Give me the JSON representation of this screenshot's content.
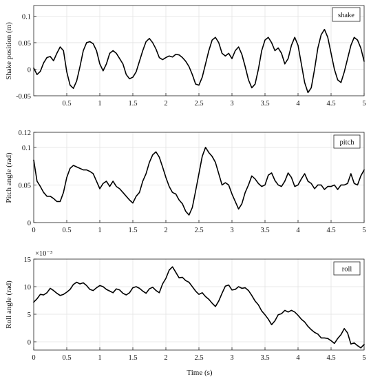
{
  "figure": {
    "xlabel": "Time (s)"
  },
  "chart_data": [
    {
      "type": "line",
      "title": "",
      "xlabel": "",
      "ylabel": "Shake position (m)",
      "xlim": [
        0,
        5
      ],
      "ylim": [
        -0.05,
        0.12
      ],
      "grid": true,
      "legend": {
        "placement": "top-right",
        "entries": [
          "shake"
        ]
      },
      "x_ticks": [
        0.5,
        1,
        1.5,
        2,
        2.5,
        3,
        3.5,
        4,
        4.5,
        5
      ],
      "x_tick_labels": [
        "0.5",
        "1",
        "1.5",
        "2",
        "2.5",
        "3",
        "3.5",
        "4",
        "4.5",
        "5"
      ],
      "y_ticks": [
        -0.05,
        0,
        0.05,
        0.1
      ],
      "y_tick_labels": [
        "-0.05",
        "0",
        "0.05",
        "0.1"
      ],
      "series": [
        {
          "name": "shake",
          "x": [
            0,
            0.05,
            0.1,
            0.15,
            0.2,
            0.25,
            0.3,
            0.35,
            0.4,
            0.45,
            0.5,
            0.55,
            0.6,
            0.65,
            0.7,
            0.75,
            0.8,
            0.85,
            0.9,
            0.95,
            1,
            1.05,
            1.1,
            1.15,
            1.2,
            1.25,
            1.3,
            1.35,
            1.4,
            1.45,
            1.5,
            1.55,
            1.6,
            1.65,
            1.7,
            1.75,
            1.8,
            1.85,
            1.9,
            1.95,
            2,
            2.05,
            2.1,
            2.15,
            2.2,
            2.25,
            2.3,
            2.35,
            2.4,
            2.45,
            2.5,
            2.55,
            2.6,
            2.65,
            2.7,
            2.75,
            2.8,
            2.85,
            2.9,
            2.95,
            3,
            3.05,
            3.1,
            3.15,
            3.2,
            3.25,
            3.3,
            3.35,
            3.4,
            3.45,
            3.5,
            3.55,
            3.6,
            3.65,
            3.7,
            3.75,
            3.8,
            3.85,
            3.9,
            3.95,
            4,
            4.05,
            4.1,
            4.15,
            4.2,
            4.25,
            4.3,
            4.35,
            4.4,
            4.45,
            4.5,
            4.55,
            4.6,
            4.65,
            4.7,
            4.75,
            4.8,
            4.85,
            4.9,
            4.95,
            5
          ],
          "y": [
            0.002,
            -0.01,
            -0.004,
            0.012,
            0.022,
            0.024,
            0.016,
            0.03,
            0.042,
            0.035,
            -0.005,
            -0.03,
            -0.036,
            -0.022,
            0.005,
            0.035,
            0.05,
            0.052,
            0.048,
            0.035,
            0.01,
            -0.003,
            0.01,
            0.03,
            0.035,
            0.03,
            0.02,
            0.01,
            -0.01,
            -0.018,
            -0.015,
            -0.005,
            0.015,
            0.035,
            0.052,
            0.058,
            0.05,
            0.038,
            0.022,
            0.018,
            0.022,
            0.025,
            0.023,
            0.028,
            0.027,
            0.022,
            0.015,
            0.005,
            -0.01,
            -0.028,
            -0.03,
            -0.015,
            0.01,
            0.035,
            0.055,
            0.06,
            0.05,
            0.03,
            0.025,
            0.03,
            0.02,
            0.035,
            0.042,
            0.028,
            0.005,
            -0.02,
            -0.035,
            -0.028,
            0,
            0.035,
            0.055,
            0.06,
            0.05,
            0.035,
            0.04,
            0.03,
            0.01,
            0.02,
            0.045,
            0.06,
            0.045,
            0.01,
            -0.025,
            -0.044,
            -0.035,
            0,
            0.04,
            0.065,
            0.075,
            0.06,
            0.03,
            0,
            -0.02,
            -0.025,
            -0.005,
            0.02,
            0.045,
            0.06,
            0.055,
            0.04,
            0.015
          ]
        }
      ]
    },
    {
      "type": "line",
      "title": "",
      "xlabel": "",
      "ylabel": "Pitch angle (rad)",
      "xlim": [
        0,
        5
      ],
      "ylim": [
        0,
        0.12
      ],
      "grid": true,
      "legend": {
        "placement": "top-right",
        "entries": [
          "pitch"
        ]
      },
      "x_ticks": [
        0,
        0.5,
        1,
        1.5,
        2,
        2.5,
        3,
        3.5,
        4,
        4.5,
        5
      ],
      "x_tick_labels": [
        "0",
        "0.5",
        "1",
        "1.5",
        "2",
        "2.5",
        "3",
        "3.5",
        "4",
        "4.5",
        "5"
      ],
      "y_ticks": [
        0,
        0.05,
        0.1,
        0.12
      ],
      "y_tick_labels": [
        "0",
        "0.05",
        "0.1",
        "0.12"
      ],
      "series": [
        {
          "name": "pitch",
          "x": [
            0,
            0.05,
            0.1,
            0.15,
            0.2,
            0.25,
            0.3,
            0.35,
            0.4,
            0.45,
            0.5,
            0.55,
            0.6,
            0.65,
            0.7,
            0.75,
            0.8,
            0.85,
            0.9,
            0.95,
            1,
            1.05,
            1.1,
            1.15,
            1.2,
            1.25,
            1.3,
            1.35,
            1.4,
            1.45,
            1.5,
            1.55,
            1.6,
            1.65,
            1.7,
            1.75,
            1.8,
            1.85,
            1.9,
            1.95,
            2,
            2.05,
            2.1,
            2.15,
            2.2,
            2.25,
            2.3,
            2.35,
            2.4,
            2.45,
            2.5,
            2.55,
            2.6,
            2.65,
            2.7,
            2.75,
            2.8,
            2.85,
            2.9,
            2.95,
            3,
            3.05,
            3.1,
            3.15,
            3.2,
            3.25,
            3.3,
            3.35,
            3.4,
            3.45,
            3.5,
            3.55,
            3.6,
            3.65,
            3.7,
            3.75,
            3.8,
            3.85,
            3.9,
            3.95,
            4,
            4.05,
            4.1,
            4.15,
            4.2,
            4.25,
            4.3,
            4.35,
            4.4,
            4.45,
            4.5,
            4.55,
            4.6,
            4.65,
            4.7,
            4.75,
            4.8,
            4.85,
            4.9,
            4.95,
            5
          ],
          "y": [
            0.083,
            0.055,
            0.048,
            0.04,
            0.035,
            0.035,
            0.032,
            0.028,
            0.028,
            0.04,
            0.06,
            0.072,
            0.076,
            0.074,
            0.072,
            0.07,
            0.07,
            0.068,
            0.065,
            0.055,
            0.045,
            0.052,
            0.055,
            0.048,
            0.055,
            0.048,
            0.045,
            0.04,
            0.035,
            0.03,
            0.026,
            0.035,
            0.04,
            0.055,
            0.065,
            0.08,
            0.09,
            0.094,
            0.087,
            0.074,
            0.06,
            0.048,
            0.04,
            0.038,
            0.03,
            0.025,
            0.015,
            0.01,
            0.02,
            0.042,
            0.065,
            0.088,
            0.1,
            0.093,
            0.088,
            0.08,
            0.065,
            0.05,
            0.053,
            0.05,
            0.038,
            0.028,
            0.018,
            0.025,
            0.04,
            0.05,
            0.062,
            0.058,
            0.052,
            0.048,
            0.05,
            0.063,
            0.066,
            0.056,
            0.05,
            0.048,
            0.055,
            0.066,
            0.06,
            0.048,
            0.05,
            0.058,
            0.065,
            0.055,
            0.052,
            0.045,
            0.05,
            0.05,
            0.044,
            0.048,
            0.048,
            0.05,
            0.044,
            0.05,
            0.05,
            0.052,
            0.065,
            0.052,
            0.05,
            0.062,
            0.07
          ]
        }
      ]
    },
    {
      "type": "line",
      "title": "",
      "xlabel": "",
      "ylabel": "Roll angle (rad)",
      "y_scale_note": "×10⁻³",
      "xlim": [
        0,
        5
      ],
      "ylim": [
        -1.5,
        15
      ],
      "grid": true,
      "legend": {
        "placement": "top-right",
        "entries": [
          "roll"
        ]
      },
      "x_ticks": [
        0,
        0.5,
        1,
        1.5,
        2,
        2.5,
        3,
        3.5,
        4,
        4.5,
        5
      ],
      "x_tick_labels": [
        "0",
        "0.5",
        "1",
        "1.5",
        "2",
        "2.5",
        "3",
        "3.5",
        "4",
        "4.5",
        "5"
      ],
      "y_ticks": [
        0,
        5,
        10,
        15
      ],
      "y_tick_labels": [
        "0",
        "5",
        "10",
        "15"
      ],
      "series": [
        {
          "name": "roll",
          "x": [
            0,
            0.05,
            0.1,
            0.15,
            0.2,
            0.25,
            0.3,
            0.35,
            0.4,
            0.45,
            0.5,
            0.55,
            0.6,
            0.65,
            0.7,
            0.75,
            0.8,
            0.85,
            0.9,
            0.95,
            1,
            1.05,
            1.1,
            1.15,
            1.2,
            1.25,
            1.3,
            1.35,
            1.4,
            1.45,
            1.5,
            1.55,
            1.6,
            1.65,
            1.7,
            1.75,
            1.8,
            1.85,
            1.9,
            1.95,
            2,
            2.05,
            2.1,
            2.15,
            2.2,
            2.25,
            2.3,
            2.35,
            2.4,
            2.45,
            2.5,
            2.55,
            2.6,
            2.65,
            2.7,
            2.75,
            2.8,
            2.85,
            2.9,
            2.95,
            3,
            3.05,
            3.1,
            3.15,
            3.2,
            3.25,
            3.3,
            3.35,
            3.4,
            3.45,
            3.5,
            3.55,
            3.6,
            3.65,
            3.7,
            3.75,
            3.8,
            3.85,
            3.9,
            3.95,
            4,
            4.05,
            4.1,
            4.15,
            4.2,
            4.25,
            4.3,
            4.35,
            4.4,
            4.45,
            4.5,
            4.55,
            4.6,
            4.65,
            4.7,
            4.75,
            4.8,
            4.85,
            4.9,
            4.95,
            5
          ],
          "y": [
            7.2,
            7.8,
            8.6,
            8.5,
            8.9,
            9.7,
            9.3,
            8.8,
            8.4,
            8.6,
            9.0,
            9.5,
            10.4,
            10.8,
            10.5,
            10.7,
            10.2,
            9.5,
            9.3,
            9.8,
            10.2,
            10.0,
            9.5,
            9.2,
            8.9,
            9.6,
            9.4,
            8.8,
            8.5,
            8.9,
            9.8,
            10.0,
            9.7,
            9.2,
            8.8,
            9.6,
            9.9,
            9.3,
            8.9,
            10.5,
            11.5,
            13.0,
            13.6,
            12.6,
            11.6,
            11.7,
            11.1,
            10.8,
            10.0,
            9.2,
            8.6,
            8.9,
            8.2,
            7.7,
            7.0,
            6.4,
            7.4,
            8.8,
            10.1,
            10.3,
            9.4,
            9.5,
            10.0,
            9.7,
            9.8,
            9.3,
            8.4,
            7.4,
            6.7,
            5.6,
            4.9,
            4.1,
            3.1,
            3.8,
            4.9,
            5.1,
            5.7,
            5.4,
            5.7,
            5.4,
            4.8,
            4.1,
            3.6,
            2.8,
            2.2,
            1.7,
            1.4,
            0.7,
            0.7,
            0.6,
            0.2,
            -0.3,
            0.6,
            1.3,
            2.4,
            1.6,
            -0.4,
            -0.2,
            -0.7,
            -1.1,
            -0.5
          ]
        }
      ]
    }
  ]
}
